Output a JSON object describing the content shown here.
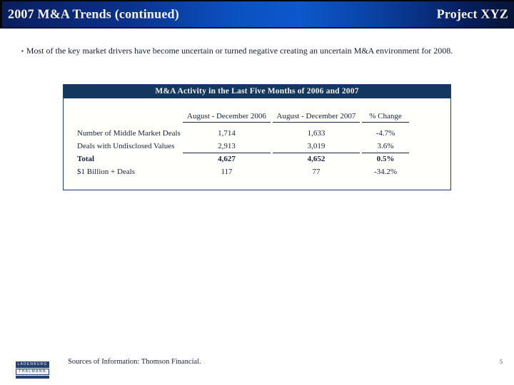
{
  "header": {
    "title": "2007 M&A Trends (continued)",
    "project": "Project XYZ"
  },
  "bullet": {
    "marker": "▪",
    "text": "Most of the key market drivers have become uncertain or turned negative creating an uncertain M&A environment for 2008."
  },
  "table": {
    "title": "M&A Activity in the Last Five Months of 2006 and 2007",
    "columns": [
      "August - December 2006",
      "August - December 2007",
      "% Change"
    ],
    "rows": [
      {
        "label": "Number of Middle Market Deals",
        "y2006": "1,714",
        "y2007": "1,633",
        "change": "-4.7%"
      },
      {
        "label": "Deals with Undisclosed Values",
        "y2006": "2,913",
        "y2007": "3,019",
        "change": "3.6%"
      },
      {
        "label": "Total",
        "y2006": "4,627",
        "y2007": "4,652",
        "change": "0.5%"
      },
      {
        "label": "$1 Billion + Deals",
        "y2006": "117",
        "y2007": "77",
        "change": "-34.2%"
      }
    ]
  },
  "footer": {
    "source": "Sources of Information:  Thomson Financial.",
    "page": "5"
  },
  "logo": {
    "line1": "LADENBURG",
    "line2": "THALMANN"
  },
  "colors": {
    "header_navy": "#0a1e5e",
    "header_blue": "#0c58cc",
    "table_header_bg": "#143760",
    "body_text": "#131c33"
  }
}
